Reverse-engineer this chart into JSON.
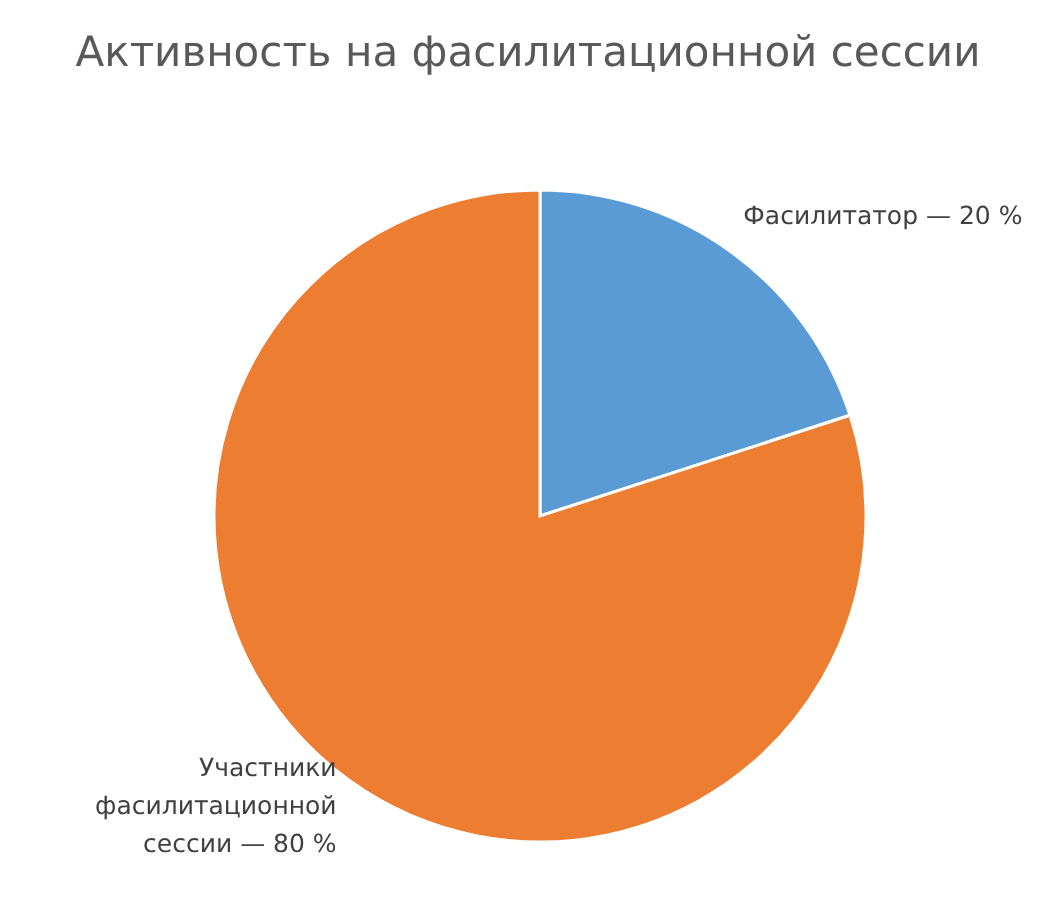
{
  "chart_data": {
    "type": "pie",
    "title": "Активность на фасилитационной сессии",
    "categories": [
      "Фасилитатор",
      "Участники фасилитационной сессии"
    ],
    "values": [
      20,
      80
    ],
    "colors": [
      "#5b9bd5",
      "#ed7d31"
    ],
    "value_labels": [
      "— 20 %",
      "— 80 %"
    ],
    "legend": false
  }
}
